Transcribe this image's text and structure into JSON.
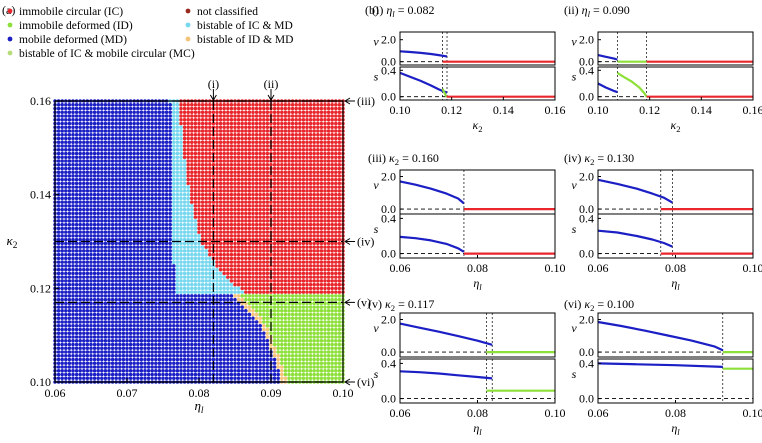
{
  "figure": {
    "panel_a_label": "(a)",
    "panel_b_label": "(b)",
    "legend": [
      {
        "label": "immobile circular (IC)",
        "color": "#e8262b",
        "col": 0,
        "row": 0
      },
      {
        "label": "not classified",
        "color": "#9a2a1f",
        "col": 1,
        "row": 0
      },
      {
        "label": "immobile deformed (ID)",
        "color": "#8de03a",
        "col": 0,
        "row": 1
      },
      {
        "label": "bistable of IC & MD",
        "color": "#76d7ee",
        "col": 1,
        "row": 1
      },
      {
        "label": "mobile deformed (MD)",
        "color": "#1b1fc4",
        "col": 0,
        "row": 2
      },
      {
        "label": "bistable of ID & MD",
        "color": "#f4c37a",
        "col": 1,
        "row": 2
      },
      {
        "label": "bistable of IC & mobile circular (MC)",
        "color": "#b6dc7a",
        "col": 0,
        "row": 3
      }
    ],
    "colors": {
      "IC": "#e8262b",
      "ID": "#8de03a",
      "MD": "#1b1fc4",
      "IC_MD": "#76d7ee",
      "ID_MD": "#f4c37a",
      "curve_blue": "#1b1fc4",
      "curve_red": "#e8262b",
      "curve_green": "#8de03a"
    }
  },
  "chart_data": [
    {
      "id": "phase-diagram",
      "type": "scatter",
      "description_label": "phase diagram",
      "xlabel": "η_l",
      "ylabel": "κ2",
      "xlim": [
        0.06,
        0.1
      ],
      "ylim": [
        0.1,
        0.16
      ],
      "xticks": [
        "0.06",
        "0.07",
        "0.08",
        "0.09",
        "0.10"
      ],
      "xtick_values": [
        0.06,
        0.07,
        0.08,
        0.09,
        0.1
      ],
      "yticks": [
        "0.10",
        "0.12",
        "0.14",
        "0.16"
      ],
      "ytick_values": [
        0.1,
        0.12,
        0.14,
        0.16
      ],
      "grid_step": {
        "eta": 0.0005,
        "kappa": 0.0008
      },
      "boundaries": {
        "MD_upper_eta_at_kappa": [
          [
            0.1185,
            0.0767
          ],
          [
            0.125,
            0.0765
          ],
          [
            0.132,
            0.0763
          ],
          [
            0.14,
            0.0762
          ],
          [
            0.16,
            0.076
          ]
        ],
        "IC_left_eta_at_kappa": [
          [
            0.1185,
            0.0868
          ],
          [
            0.122,
            0.0838
          ],
          [
            0.126,
            0.0818
          ],
          [
            0.13,
            0.0803
          ],
          [
            0.135,
            0.0795
          ],
          [
            0.14,
            0.0787
          ],
          [
            0.145,
            0.0782
          ],
          [
            0.15,
            0.0778
          ],
          [
            0.155,
            0.0775
          ],
          [
            0.16,
            0.0773
          ]
        ],
        "ID_left_eta_at_kappa": [
          [
            0.1,
            0.0922
          ],
          [
            0.104,
            0.0915
          ],
          [
            0.108,
            0.0905
          ],
          [
            0.112,
            0.0893
          ],
          [
            0.115,
            0.0878
          ],
          [
            0.1185,
            0.0855
          ]
        ],
        "split_kappa": 0.1185
      },
      "guide_lines": [
        {
          "label": "(i)",
          "orientation": "vertical",
          "value": 0.082
        },
        {
          "label": "(ii)",
          "orientation": "vertical",
          "value": 0.09
        },
        {
          "label": "(iii)",
          "orientation": "horizontal",
          "value": 0.16
        },
        {
          "label": "(iv)",
          "orientation": "horizontal",
          "value": 0.13
        },
        {
          "label": "(v)",
          "orientation": "horizontal",
          "value": 0.117
        },
        {
          "label": "(vi)",
          "orientation": "horizontal",
          "value": 0.1
        }
      ]
    },
    {
      "id": "panel-i",
      "type": "line",
      "title_prefix": "(i)",
      "title_var": "η_l",
      "title_value": "= 0.082",
      "xlabel": "κ2",
      "xlim": [
        0.1,
        0.16
      ],
      "xticks": [
        "0.10",
        "0.12",
        "0.14",
        "0.16"
      ],
      "xtick_values": [
        0.1,
        0.12,
        0.14,
        0.16
      ],
      "v_ylim": [
        -0.3,
        2.7
      ],
      "v_yticks": [
        "2.0",
        "0.0"
      ],
      "v_ytick_values": [
        2.0,
        0.0
      ],
      "s_ylim": [
        -0.05,
        0.45
      ],
      "s_yticks": [
        "0.4",
        "0.0"
      ],
      "s_ytick_values": [
        0.4,
        0.0
      ],
      "vlines": [
        0.1165,
        0.1182
      ],
      "v_series": [
        {
          "color": "blue",
          "points": [
            [
              0.1,
              0.95
            ],
            [
              0.104,
              0.88
            ],
            [
              0.108,
              0.8
            ],
            [
              0.112,
              0.7
            ],
            [
              0.115,
              0.6
            ],
            [
              0.1182,
              0.48
            ]
          ]
        },
        {
          "color": "red",
          "points": [
            [
              0.1165,
              0.0
            ],
            [
              0.16,
              0.0
            ]
          ]
        }
      ],
      "s_series": [
        {
          "color": "blue",
          "points": [
            [
              0.1,
              0.36
            ],
            [
              0.104,
              0.3
            ],
            [
              0.108,
              0.24
            ],
            [
              0.112,
              0.17
            ],
            [
              0.115,
              0.11
            ],
            [
              0.1182,
              0.06
            ]
          ]
        },
        {
          "color": "green",
          "points": [
            [
              0.1165,
              0.12
            ],
            [
              0.1172,
              0.06
            ],
            [
              0.118,
              0.0
            ]
          ]
        },
        {
          "color": "red",
          "points": [
            [
              0.118,
              0.0
            ],
            [
              0.16,
              0.0
            ]
          ]
        }
      ]
    },
    {
      "id": "panel-ii",
      "type": "line",
      "title_prefix": "(ii)",
      "title_var": "η_l",
      "title_value": "= 0.090",
      "xlabel": "κ2",
      "xlim": [
        0.1,
        0.16
      ],
      "xticks": [
        "0.10",
        "0.12",
        "0.14",
        "0.16"
      ],
      "xtick_values": [
        0.1,
        0.12,
        0.14,
        0.16
      ],
      "v_ylim": [
        -0.3,
        2.7
      ],
      "v_yticks": [
        "2.0",
        "0.0"
      ],
      "v_ytick_values": [
        2.0,
        0.0
      ],
      "s_ylim": [
        -0.05,
        0.45
      ],
      "s_yticks": [
        "0.4",
        "0.0"
      ],
      "s_ytick_values": [
        0.4,
        0.0
      ],
      "vlines": [
        0.1075,
        0.1188
      ],
      "v_series": [
        {
          "color": "blue",
          "points": [
            [
              0.1,
              0.6
            ],
            [
              0.103,
              0.45
            ],
            [
              0.106,
              0.3
            ],
            [
              0.1075,
              0.2
            ]
          ]
        },
        {
          "color": "green",
          "points": [
            [
              0.1075,
              0.0
            ],
            [
              0.1188,
              0.0
            ]
          ]
        },
        {
          "color": "red",
          "points": [
            [
              0.1188,
              0.0
            ],
            [
              0.16,
              0.0
            ]
          ]
        }
      ],
      "s_series": [
        {
          "color": "blue",
          "points": [
            [
              0.1,
              0.2
            ],
            [
              0.103,
              0.14
            ],
            [
              0.106,
              0.09
            ],
            [
              0.1075,
              0.07
            ]
          ]
        },
        {
          "color": "green",
          "points": [
            [
              0.1075,
              0.36
            ],
            [
              0.11,
              0.3
            ],
            [
              0.113,
              0.23
            ],
            [
              0.116,
              0.14
            ],
            [
              0.118,
              0.05
            ],
            [
              0.1188,
              0.0
            ]
          ]
        },
        {
          "color": "red",
          "points": [
            [
              0.1188,
              0.0
            ],
            [
              0.16,
              0.0
            ]
          ]
        }
      ]
    },
    {
      "id": "panel-iii",
      "type": "line",
      "title_prefix": "(iii)",
      "title_var": "κ2",
      "title_value": "= 0.160",
      "xlabel": "η_l",
      "xlim": [
        0.06,
        0.1
      ],
      "xticks": [
        "0.06",
        "0.08",
        "0.10"
      ],
      "xtick_values": [
        0.06,
        0.08,
        0.1
      ],
      "v_ylim": [
        -0.3,
        2.4
      ],
      "v_yticks": [
        "2.0",
        "0.0"
      ],
      "v_ytick_values": [
        2.0,
        0.0
      ],
      "s_ylim": [
        -0.05,
        0.45
      ],
      "s_yticks": [
        "0.4",
        "0.0"
      ],
      "s_ytick_values": [
        0.4,
        0.0
      ],
      "vlines": [
        0.0765
      ],
      "v_series": [
        {
          "color": "blue",
          "points": [
            [
              0.06,
              1.7
            ],
            [
              0.064,
              1.5
            ],
            [
              0.068,
              1.25
            ],
            [
              0.072,
              0.95
            ],
            [
              0.075,
              0.65
            ],
            [
              0.0765,
              0.35
            ]
          ]
        },
        {
          "color": "red",
          "points": [
            [
              0.0765,
              0.0
            ],
            [
              0.1,
              0.0
            ]
          ]
        }
      ],
      "s_series": [
        {
          "color": "blue",
          "points": [
            [
              0.06,
              0.19
            ],
            [
              0.064,
              0.175
            ],
            [
              0.068,
              0.15
            ],
            [
              0.072,
              0.11
            ],
            [
              0.075,
              0.06
            ],
            [
              0.0765,
              0.02
            ]
          ]
        },
        {
          "color": "red",
          "points": [
            [
              0.0765,
              0.0
            ],
            [
              0.1,
              0.0
            ]
          ]
        }
      ]
    },
    {
      "id": "panel-iv",
      "type": "line",
      "title_prefix": "(iv)",
      "title_var": "κ2",
      "title_value": "= 0.130",
      "xlabel": "η_l",
      "xlim": [
        0.06,
        0.1
      ],
      "xticks": [
        "0.06",
        "0.08",
        "0.10"
      ],
      "xtick_values": [
        0.06,
        0.08,
        0.1
      ],
      "v_ylim": [
        -0.3,
        2.4
      ],
      "v_yticks": [
        "2.0",
        "0.0"
      ],
      "v_ytick_values": [
        2.0,
        0.0
      ],
      "s_ylim": [
        -0.05,
        0.45
      ],
      "s_yticks": [
        "0.4",
        "0.0"
      ],
      "s_ytick_values": [
        0.4,
        0.0
      ],
      "vlines": [
        0.0762,
        0.0792
      ],
      "v_series": [
        {
          "color": "blue",
          "points": [
            [
              0.06,
              1.8
            ],
            [
              0.065,
              1.55
            ],
            [
              0.07,
              1.25
            ],
            [
              0.074,
              0.95
            ],
            [
              0.077,
              0.7
            ],
            [
              0.0792,
              0.4
            ]
          ]
        },
        {
          "color": "red",
          "points": [
            [
              0.0762,
              0.0
            ],
            [
              0.1,
              0.0
            ]
          ]
        }
      ],
      "s_series": [
        {
          "color": "blue",
          "points": [
            [
              0.06,
              0.26
            ],
            [
              0.065,
              0.24
            ],
            [
              0.07,
              0.2
            ],
            [
              0.074,
              0.16
            ],
            [
              0.077,
              0.12
            ],
            [
              0.0792,
              0.08
            ]
          ]
        },
        {
          "color": "red",
          "points": [
            [
              0.0762,
              0.0
            ],
            [
              0.1,
              0.0
            ]
          ]
        }
      ]
    },
    {
      "id": "panel-v",
      "type": "line",
      "title_prefix": "(v)",
      "title_var": "κ2",
      "title_value": "= 0.117",
      "xlabel": "η_l",
      "xlim": [
        0.06,
        0.1
      ],
      "xticks": [
        "0.06",
        "0.08",
        "0.10"
      ],
      "xtick_values": [
        0.06,
        0.08,
        0.1
      ],
      "v_ylim": [
        -0.3,
        2.4
      ],
      "v_yticks": [
        "2.0",
        "0.0"
      ],
      "v_ytick_values": [
        2.0,
        0.0
      ],
      "s_ylim": [
        -0.05,
        0.45
      ],
      "s_yticks": [
        "0.4",
        "0.0"
      ],
      "s_ytick_values": [
        0.4,
        0.0
      ],
      "vlines": [
        0.0823,
        0.0838
      ],
      "v_series": [
        {
          "color": "blue",
          "points": [
            [
              0.06,
              1.75
            ],
            [
              0.065,
              1.5
            ],
            [
              0.07,
              1.25
            ],
            [
              0.075,
              0.98
            ],
            [
              0.08,
              0.7
            ],
            [
              0.0838,
              0.45
            ]
          ]
        },
        {
          "color": "green",
          "points": [
            [
              0.0823,
              0.0
            ],
            [
              0.1,
              0.0
            ]
          ]
        }
      ],
      "s_series": [
        {
          "color": "blue",
          "points": [
            [
              0.06,
              0.31
            ],
            [
              0.065,
              0.3
            ],
            [
              0.07,
              0.285
            ],
            [
              0.075,
              0.265
            ],
            [
              0.08,
              0.245
            ],
            [
              0.0838,
              0.23
            ]
          ]
        },
        {
          "color": "green",
          "points": [
            [
              0.0823,
              0.09
            ],
            [
              0.1,
              0.09
            ]
          ]
        }
      ]
    },
    {
      "id": "panel-vi",
      "type": "line",
      "title_prefix": "(vi)",
      "title_var": "κ2",
      "title_value": "= 0.100",
      "xlabel": "η_l",
      "xlim": [
        0.06,
        0.1
      ],
      "xticks": [
        "0.06",
        "0.08",
        "0.10"
      ],
      "xtick_values": [
        0.06,
        0.08,
        0.1
      ],
      "v_ylim": [
        -0.3,
        2.4
      ],
      "v_yticks": [
        "2.0",
        "0.0"
      ],
      "v_ytick_values": [
        2.0,
        0.0
      ],
      "s_ylim": [
        -0.05,
        0.45
      ],
      "s_yticks": [
        "0.4",
        "0.0"
      ],
      "s_ytick_values": [
        0.4,
        0.0
      ],
      "vlines": [
        0.0922
      ],
      "v_series": [
        {
          "color": "blue",
          "points": [
            [
              0.06,
              1.85
            ],
            [
              0.066,
              1.6
            ],
            [
              0.072,
              1.32
            ],
            [
              0.078,
              1.02
            ],
            [
              0.084,
              0.72
            ],
            [
              0.09,
              0.35
            ],
            [
              0.0922,
              0.12
            ]
          ]
        },
        {
          "color": "green",
          "points": [
            [
              0.0922,
              0.0
            ],
            [
              0.1,
              0.0
            ]
          ]
        }
      ],
      "s_series": [
        {
          "color": "blue",
          "points": [
            [
              0.06,
              0.4
            ],
            [
              0.07,
              0.39
            ],
            [
              0.08,
              0.38
            ],
            [
              0.0922,
              0.36
            ]
          ]
        },
        {
          "color": "green",
          "points": [
            [
              0.0922,
              0.34
            ],
            [
              0.1,
              0.34
            ]
          ]
        }
      ]
    }
  ]
}
